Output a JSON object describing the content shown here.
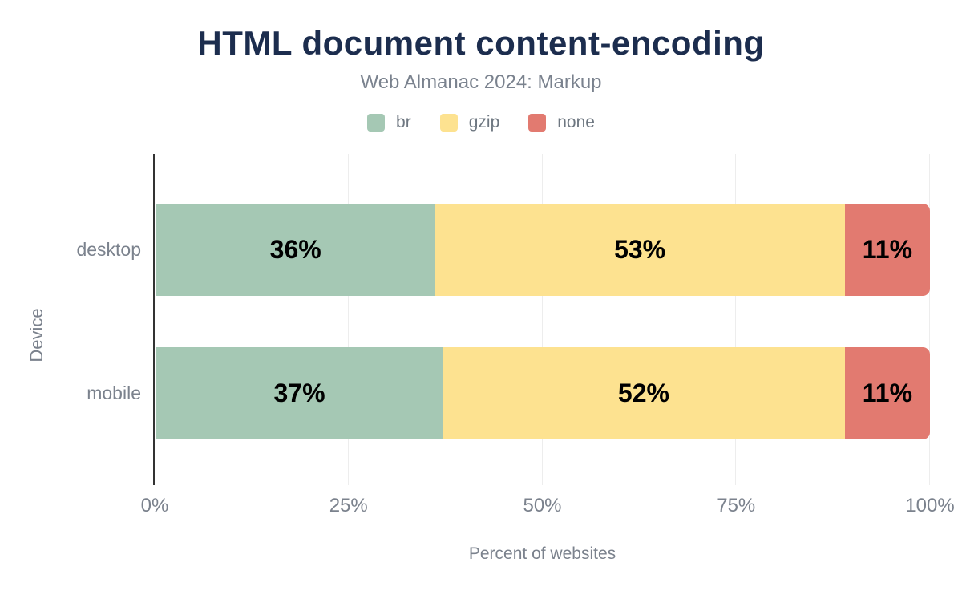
{
  "header": {
    "title": "HTML document content-encoding",
    "subtitle": "Web Almanac 2024: Markup"
  },
  "legend": {
    "items": [
      {
        "label": "br",
        "color": "#a5c8b4"
      },
      {
        "label": "gzip",
        "color": "#fde290"
      },
      {
        "label": "none",
        "color": "#e27a70"
      }
    ]
  },
  "chart_data": {
    "type": "bar",
    "orientation": "horizontal",
    "stacked": true,
    "title": "HTML document content-encoding",
    "subtitle": "Web Almanac 2024: Markup",
    "categories": [
      "desktop",
      "mobile"
    ],
    "series": [
      {
        "name": "br",
        "color": "#a5c8b4",
        "values": [
          36,
          37
        ]
      },
      {
        "name": "gzip",
        "color": "#fde290",
        "values": [
          53,
          52
        ]
      },
      {
        "name": "none",
        "color": "#e27a70",
        "values": [
          11,
          11
        ]
      }
    ],
    "value_labels": [
      [
        "36%",
        "53%",
        "11%"
      ],
      [
        "37%",
        "52%",
        "11%"
      ]
    ],
    "xlabel": "Percent of websites",
    "ylabel": "Device",
    "xlim": [
      0,
      100
    ],
    "x_ticks": [
      0,
      25,
      50,
      75,
      100
    ],
    "x_tick_labels": [
      "0%",
      "25%",
      "50%",
      "75%",
      "100%"
    ],
    "grid": "vertical",
    "legend_position": "top"
  },
  "colors": {
    "background": "#ffffff",
    "title_text": "#1c2d4e",
    "subtitle_text": "#7a828e",
    "axis_text": "#7b828d",
    "gridline": "#ededed",
    "axis_line": "#333333",
    "value_label_text": "#000000"
  }
}
